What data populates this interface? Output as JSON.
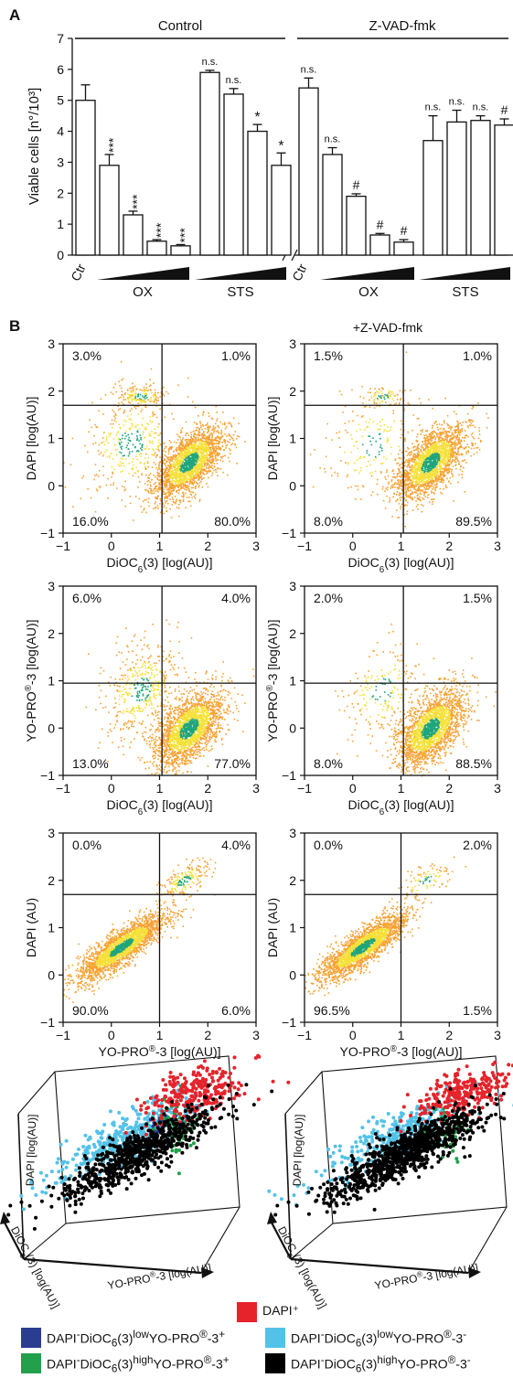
{
  "panel_labels": {
    "a": "A",
    "b": "B"
  },
  "colors": {
    "bar_fill": "#ffffff",
    "dens_low": "#f7a233",
    "dens_mid": "#f5e03a",
    "dens_high": "#1fa57a",
    "dapi_pos": "#e6232b",
    "low_yopro_pos": "#2b3d91",
    "low_yopro_neg": "#53c2e8",
    "high_yopro_pos": "#22a04b",
    "high_yopro_neg": "#000000"
  },
  "chart_data": [
    {
      "type": "bar",
      "panel": "A",
      "ylabel": "Viable cells [n°/10³]",
      "ylim": [
        0,
        7
      ],
      "yticks": [
        "0",
        "1",
        "2",
        "3",
        "4",
        "5",
        "6",
        "7"
      ],
      "groups": [
        "Control",
        "Z-VAD-fmk"
      ],
      "condition_labels": [
        "Ctr",
        "OX",
        "STS"
      ],
      "control": {
        "values": [
          5.0,
          2.9,
          1.3,
          0.45,
          0.3,
          5.9,
          5.2,
          4.0,
          2.9
        ],
        "errors": [
          0.5,
          0.35,
          0.12,
          0.05,
          0.04,
          0.07,
          0.18,
          0.22,
          0.4
        ],
        "annotations": [
          "",
          "***",
          "***",
          "***",
          "***",
          "n.s.",
          "n.s.",
          "*",
          "*"
        ]
      },
      "zvad": {
        "values": [
          5.4,
          3.25,
          1.9,
          0.65,
          0.42,
          3.7,
          4.3,
          4.35,
          4.2
        ],
        "errors": [
          0.32,
          0.22,
          0.08,
          0.05,
          0.08,
          0.8,
          0.38,
          0.15,
          0.2
        ],
        "annotations": [
          "n.s.",
          "n.s.",
          "#",
          "#",
          "#",
          "n.s.",
          "n.s.",
          "n.s.",
          "#"
        ]
      }
    },
    {
      "type": "scatter",
      "panel": "B",
      "subtitle": "+Z-VAD-fmk",
      "plots": [
        {
          "xlabel": "DiOC6(3) [log(AU)]",
          "ylabel": "DAPI [log(AU)]",
          "quadrants": [
            "3.0%",
            "1.0%",
            "16.0%",
            "80.0%"
          ]
        },
        {
          "xlabel": "DiOC6(3) [log(AU)]",
          "ylabel": "DAPI [log(AU)]",
          "quadrants": [
            "1.5%",
            "1.0%",
            "8.0%",
            "89.5%"
          ]
        },
        {
          "xlabel": "DiOC6(3) [log(AU)]",
          "ylabel": "YO-PRO®-3 [log(AU)]",
          "quadrants": [
            "6.0%",
            "4.0%",
            "13.0%",
            "77.0%"
          ]
        },
        {
          "xlabel": "DiOC6(3) [log(AU)]",
          "ylabel": "YO-PRO®-3 [log(AU)]",
          "quadrants": [
            "2.0%",
            "1.5%",
            "8.0%",
            "88.5%"
          ]
        },
        {
          "xlabel": "YO-PRO®-3 [log(AU)]",
          "ylabel": "DAPI (AU)",
          "quadrants": [
            "0.0%",
            "4.0%",
            "90.0%",
            "6.0%"
          ]
        },
        {
          "xlabel": "YO-PRO®-3 [log(AU)]",
          "ylabel": "DAPI (AU)",
          "quadrants": [
            "0.0%",
            "2.0%",
            "96.5%",
            "1.5%"
          ]
        }
      ],
      "xticks": [
        "−1",
        "0",
        "1",
        "2",
        "3"
      ],
      "yticks": [
        "−1",
        "0",
        "1",
        "2",
        "3"
      ]
    },
    {
      "type": "scatter",
      "panel": "B-3D",
      "axis_labels": {
        "z": "DAPI [log(AU)]",
        "x": "DiOC6(3) [log(AU)]",
        "y": "YO-PRO®-3 [log(AU)]"
      },
      "legend": [
        "DAPI⁺",
        "DAPI⁻DiOC6(3)lowYO-PRO®-3⁺",
        "DAPI⁻DiOC6(3)lowYO-PRO®-3⁻",
        "DAPI⁻DiOC6(3)highYO-PRO®-3⁺",
        "DAPI⁻DiOC6(3)highYO-PRO®-3⁻"
      ]
    }
  ]
}
